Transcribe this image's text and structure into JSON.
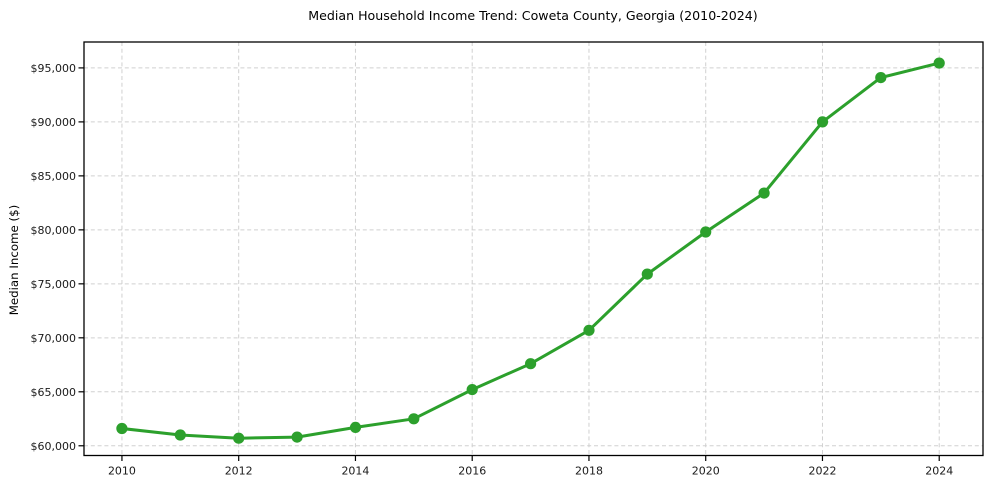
{
  "chart_data": {
    "type": "line",
    "title": "Median Household Income Trend: Coweta County, Georgia (2010-2024)",
    "xlabel": "",
    "ylabel": "Median Income ($)",
    "x": [
      2010,
      2011,
      2012,
      2013,
      2014,
      2015,
      2016,
      2017,
      2018,
      2019,
      2020,
      2021,
      2022,
      2023,
      2024
    ],
    "series": [
      {
        "name": "Median Household Income",
        "values": [
          61600,
          61000,
          60700,
          60800,
          61700,
          62500,
          65200,
          67600,
          70700,
          75900,
          79800,
          83400,
          90000,
          94100,
          95450
        ]
      }
    ],
    "x_ticks": [
      2010,
      2012,
      2014,
      2016,
      2018,
      2020,
      2022,
      2024
    ],
    "x_tick_labels": [
      "2010",
      "2012",
      "2014",
      "2016",
      "2018",
      "2020",
      "2022",
      "2024"
    ],
    "y_ticks": [
      60000,
      65000,
      70000,
      75000,
      80000,
      85000,
      90000,
      95000
    ],
    "y_tick_labels": [
      "$60,000",
      "$65,000",
      "$70,000",
      "$75,000",
      "$80,000",
      "$85,000",
      "$90,000",
      "$95,000"
    ],
    "xlim": [
      2009.35,
      2024.75
    ],
    "ylim": [
      59100,
      97400
    ],
    "grid": true,
    "grid_style": "dashed",
    "legend": "none",
    "line_color": "#2ca02c",
    "marker_color": "#2ca02c",
    "grid_color": "#d0d0d0",
    "axis_color": "#000000",
    "text_color": "#1a1a1a"
  }
}
